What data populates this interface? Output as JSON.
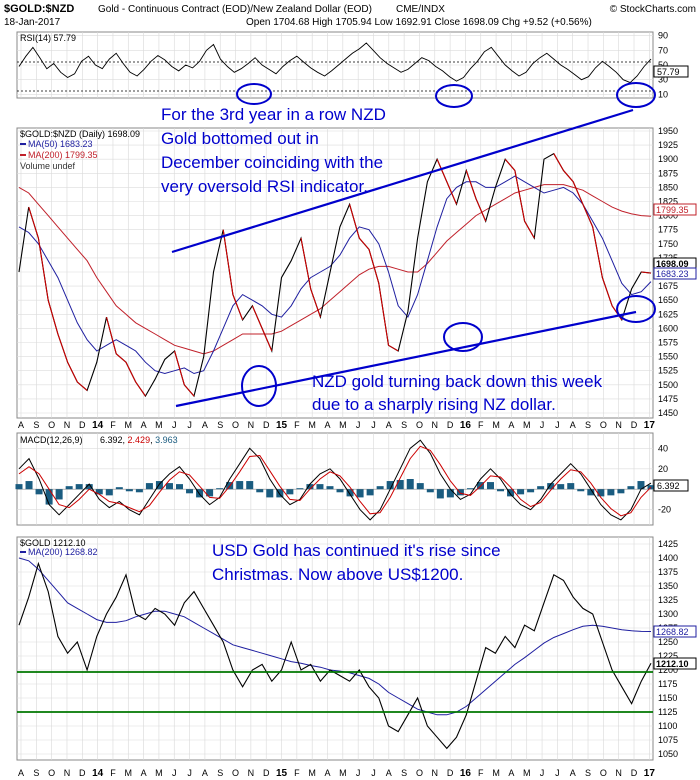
{
  "header": {
    "symbol": "$GOLD:$NZD",
    "name": "Gold - Continuous Contract (EOD)/New Zealand Dollar (EOD)",
    "exchange": "CME/INDX",
    "date": "18-Jan-2017",
    "ohlc": "Open 1704.68  High 1705.94  Low 1692.91  Close 1698.09  Chg +9.52 (+0.56%)",
    "watermark": "© StockCharts.com"
  },
  "colors": {
    "price": "#000000",
    "down": "#cc0000",
    "ma50": "#1f1fa0",
    "ma200": "#c0202a",
    "annotation": "#0000cc",
    "support": "#007700",
    "macd_hist": "#1a5c80",
    "rsi_line": "#000000"
  },
  "x_axis": {
    "labels": [
      "A",
      "S",
      "O",
      "N",
      "D",
      "14",
      "F",
      "M",
      "A",
      "M",
      "J",
      "J",
      "A",
      "S",
      "O",
      "N",
      "D",
      "15",
      "F",
      "M",
      "A",
      "M",
      "J",
      "J",
      "A",
      "S",
      "O",
      "N",
      "D",
      "16",
      "F",
      "M",
      "A",
      "M",
      "J",
      "J",
      "A",
      "S",
      "O",
      "N",
      "D",
      "17"
    ],
    "bold": [
      "14",
      "15",
      "16",
      "17"
    ]
  },
  "rsi_panel": {
    "legend": "RSI(14) 57.79",
    "ticks": [
      "90",
      "70",
      "50",
      "30",
      "10"
    ],
    "last_value": "57.79"
  },
  "nzd_panel": {
    "legend": "$GOLD:$NZD (Daily) 1698.09",
    "ma50_legend": "MA(50) 1683.23",
    "ma200_legend": "MA(200) 1799.35",
    "volume_legend": "Volume undef",
    "ticks": [
      "1950",
      "1925",
      "1900",
      "1875",
      "1850",
      "1825",
      "1800",
      "1775",
      "1750",
      "1725",
      "1700",
      "1675",
      "1650",
      "1625",
      "1600",
      "1575",
      "1550",
      "1525",
      "1500",
      "1475",
      "1450"
    ],
    "price_tag": "1698.09",
    "ma50_tag": "1683.23",
    "ma200_tag": "1799.35"
  },
  "macd_panel": {
    "legend_prefix": "MACD(12,26,9)",
    "values": [
      "6.392",
      "2.429",
      "3.963"
    ],
    "ticks": [
      "40",
      "20",
      "-20"
    ],
    "tag": "6.392"
  },
  "usd_panel": {
    "legend": "$GOLD 1212.10",
    "ma200_legend": "MA(200) 1268.82",
    "ticks": [
      "1425",
      "1400",
      "1375",
      "1350",
      "1325",
      "1300",
      "1275",
      "1250",
      "1225",
      "1200",
      "1175",
      "1150",
      "1125",
      "1100",
      "1075",
      "1050"
    ],
    "price_tag": "1212.10",
    "ma200_tag": "1268.82"
  },
  "annotations": {
    "nzd_bottom": [
      "For the 3rd year in a row NZD",
      "Gold bottomed out in",
      "December coinciding with the",
      "very oversold RSI indicator."
    ],
    "nzd_turn": [
      "NZD gold turning back down this week",
      "due to a sharply rising NZ dollar."
    ],
    "usd_rise": [
      "USD Gold has continued it's rise since",
      "Christmas. Now above US$1200."
    ]
  },
  "chart_data": [
    {
      "type": "line",
      "title": "RSI(14) 57.79",
      "ylim": [
        10,
        90
      ],
      "series": [
        {
          "name": "RSI(14)",
          "values": [
            48,
            62,
            74,
            60,
            45,
            52,
            40,
            33,
            38,
            55,
            62,
            50,
            45,
            58,
            66,
            52,
            40,
            35,
            44,
            55,
            63,
            57,
            48,
            42,
            50,
            46,
            55,
            70,
            78,
            58,
            48,
            40,
            45,
            52,
            60,
            50,
            44,
            38,
            48,
            56,
            62,
            54,
            46,
            40,
            35,
            42,
            50,
            58,
            66,
            72,
            80,
            70,
            60,
            52,
            46,
            40,
            44,
            52,
            60,
            56,
            48,
            42,
            34,
            28,
            33,
            45,
            55,
            68,
            74,
            62,
            50,
            42,
            35,
            40,
            52,
            60,
            66,
            58,
            50,
            44,
            37,
            30,
            34,
            46,
            55,
            48,
            40,
            30,
            26,
            35,
            48,
            58
          ]
        }
      ]
    },
    {
      "type": "line",
      "title": "$GOLD:$NZD (Daily) 1698.09",
      "ylim": [
        1450,
        1950
      ],
      "series": [
        {
          "name": "$GOLD:$NZD",
          "values": [
            1700,
            1815,
            1760,
            1650,
            1590,
            1540,
            1505,
            1490,
            1540,
            1620,
            1555,
            1540,
            1505,
            1480,
            1510,
            1545,
            1560,
            1500,
            1480,
            1550,
            1700,
            1775,
            1660,
            1615,
            1640,
            1600,
            1560,
            1690,
            1720,
            1760,
            1670,
            1620,
            1700,
            1780,
            1820,
            1760,
            1740,
            1680,
            1570,
            1560,
            1630,
            1760,
            1860,
            1900,
            1860,
            1820,
            1880,
            1830,
            1790,
            1850,
            1900,
            1880,
            1790,
            1760,
            1900,
            1910,
            1880,
            1860,
            1820,
            1780,
            1690,
            1640,
            1615,
            1670,
            1700,
            1698
          ]
        },
        {
          "name": "MA(50)",
          "values": [
            1780,
            1770,
            1750,
            1720,
            1690,
            1650,
            1610,
            1580,
            1560,
            1570,
            1580,
            1570,
            1560,
            1540,
            1525,
            1520,
            1525,
            1530,
            1520,
            1525,
            1560,
            1600,
            1640,
            1660,
            1650,
            1640,
            1625,
            1620,
            1640,
            1670,
            1690,
            1700,
            1710,
            1730,
            1760,
            1780,
            1775,
            1750,
            1700,
            1640,
            1620,
            1660,
            1720,
            1780,
            1830,
            1850,
            1860,
            1860,
            1850,
            1850,
            1860,
            1870,
            1860,
            1850,
            1840,
            1845,
            1850,
            1840,
            1820,
            1790,
            1760,
            1720,
            1680,
            1660,
            1665,
            1683
          ]
        },
        {
          "name": "MA(200)",
          "values": [
            1850,
            1840,
            1820,
            1800,
            1780,
            1760,
            1740,
            1720,
            1690,
            1665,
            1640,
            1625,
            1610,
            1600,
            1590,
            1580,
            1570,
            1565,
            1560,
            1555,
            1560,
            1570,
            1580,
            1590,
            1590,
            1590,
            1590,
            1595,
            1605,
            1615,
            1625,
            1635,
            1650,
            1665,
            1680,
            1695,
            1705,
            1710,
            1710,
            1705,
            1700,
            1700,
            1715,
            1735,
            1755,
            1770,
            1785,
            1800,
            1810,
            1820,
            1830,
            1840,
            1845,
            1850,
            1855,
            1855,
            1855,
            1850,
            1845,
            1835,
            1825,
            1815,
            1808,
            1803,
            1800,
            1799
          ]
        }
      ]
    },
    {
      "type": "line",
      "title": "MACD(12,26,9) 6.392, 2.429, 3.963",
      "ylim": [
        -35,
        55
      ],
      "series": [
        {
          "name": "MACD",
          "values": [
            20,
            30,
            10,
            -15,
            -25,
            -15,
            -5,
            5,
            -10,
            -18,
            -12,
            -20,
            -25,
            -10,
            5,
            15,
            22,
            10,
            -5,
            -15,
            -8,
            10,
            25,
            40,
            30,
            10,
            -5,
            -15,
            -10,
            5,
            15,
            20,
            10,
            -5,
            -20,
            -30,
            -20,
            0,
            20,
            40,
            48,
            35,
            15,
            0,
            -10,
            -5,
            10,
            20,
            10,
            -5,
            -15,
            -20,
            -10,
            5,
            15,
            25,
            15,
            0,
            -15,
            -25,
            -30,
            -20,
            0,
            6
          ]
        },
        {
          "name": "Signal",
          "values": [
            15,
            22,
            15,
            0,
            -15,
            -18,
            -10,
            0,
            -5,
            -12,
            -14,
            -18,
            -22,
            -16,
            -3,
            9,
            17,
            14,
            3,
            -8,
            -9,
            3,
            17,
            32,
            33,
            18,
            3,
            -10,
            -11,
            0,
            10,
            17,
            13,
            2,
            -12,
            -24,
            -23,
            -8,
            11,
            30,
            42,
            38,
            24,
            8,
            -4,
            -6,
            3,
            13,
            12,
            2,
            -10,
            -17,
            -13,
            -1,
            10,
            19,
            17,
            6,
            -8,
            -19,
            -26,
            -23,
            -8,
            2
          ]
        }
      ]
    },
    {
      "type": "line",
      "title": "$GOLD 1212.10",
      "ylim": [
        1030,
        1430
      ],
      "series": [
        {
          "name": "$GOLD",
          "values": [
            1280,
            1330,
            1390,
            1340,
            1260,
            1230,
            1250,
            1200,
            1260,
            1300,
            1330,
            1370,
            1300,
            1290,
            1310,
            1300,
            1280,
            1320,
            1340,
            1310,
            1280,
            1250,
            1200,
            1170,
            1200,
            1210,
            1180,
            1200,
            1250,
            1200,
            1210,
            1180,
            1200,
            1190,
            1180,
            1200,
            1170,
            1150,
            1100,
            1090,
            1120,
            1150,
            1100,
            1080,
            1060,
            1080,
            1120,
            1180,
            1240,
            1230,
            1260,
            1240,
            1280,
            1270,
            1320,
            1370,
            1360,
            1330,
            1310,
            1300,
            1250,
            1200,
            1170,
            1140,
            1180,
            1212
          ]
        },
        {
          "name": "MA(200)",
          "values": [
            1400,
            1395,
            1380,
            1360,
            1340,
            1320,
            1310,
            1300,
            1290,
            1285,
            1285,
            1288,
            1295,
            1300,
            1305,
            1305,
            1300,
            1295,
            1285,
            1275,
            1265,
            1255,
            1245,
            1240,
            1235,
            1230,
            1225,
            1220,
            1215,
            1212,
            1208,
            1205,
            1200,
            1198,
            1195,
            1190,
            1185,
            1175,
            1160,
            1150,
            1140,
            1130,
            1125,
            1120,
            1120,
            1125,
            1135,
            1150,
            1165,
            1180,
            1195,
            1210,
            1222,
            1235,
            1248,
            1258,
            1265,
            1272,
            1278,
            1280,
            1278,
            1275,
            1272,
            1270,
            1269,
            1268.82
          ]
        }
      ]
    }
  ]
}
